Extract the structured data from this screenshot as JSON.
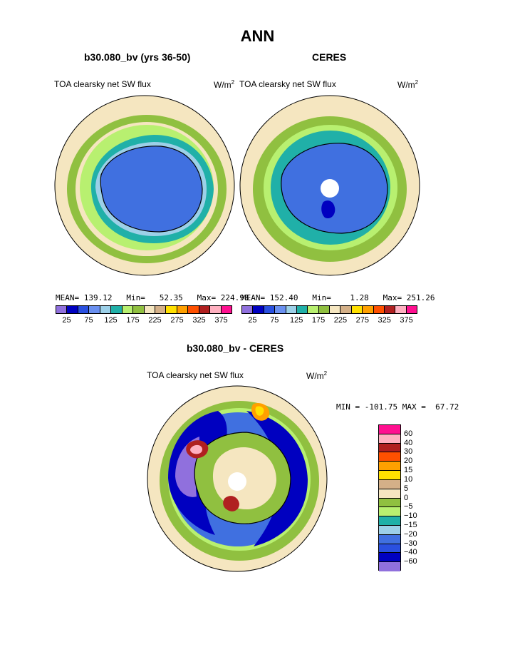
{
  "title": "ANN",
  "panels": {
    "left": {
      "title": "b30.080_bv (yrs 36-50)",
      "variable": "TOA clearsky net SW flux",
      "units_base": "W/m",
      "units_exp": "2",
      "stats": "MEAN= 139.12   Min=   52.35   Max= 224.98"
    },
    "right": {
      "title": "CERES",
      "variable": "TOA clearsky net SW flux",
      "units_base": "W/m",
      "units_exp": "2",
      "stats": "MEAN= 152.40   Min=    1.28   Max= 251.26"
    },
    "diff": {
      "title": "b30.080_bv - CERES",
      "variable": "TOA clearsky net SW flux",
      "units_base": "W/m",
      "units_exp": "2",
      "stats": "MIN = -101.75 MAX =  67.72"
    }
  },
  "colorbar_top": {
    "colors": [
      "#9070dd",
      "#0000c0",
      "#2a50e0",
      "#6a90f0",
      "#9cd0e8",
      "#20b0a8",
      "#b8f070",
      "#90c040",
      "#f5e6c0",
      "#d4b088",
      "#ffe000",
      "#ffa000",
      "#ff5000",
      "#b02020",
      "#ffb0c0",
      "#ff1090"
    ],
    "labels": [
      "25",
      "75",
      "125",
      "175",
      "225",
      "275",
      "325",
      "375"
    ]
  },
  "colorbar_diff": {
    "colors": [
      "#ff1090",
      "#ffb0c0",
      "#b02020",
      "#ff5000",
      "#ffa000",
      "#ffe000",
      "#d4b088",
      "#f5e6c0",
      "#90c040",
      "#b8f070",
      "#20b0a8",
      "#9cd0e8",
      "#4070e0",
      "#2a50e0",
      "#0000c0",
      "#9070dd"
    ],
    "labels": [
      "60",
      "40",
      "30",
      "20",
      "15",
      "10",
      "5",
      "0",
      "−5",
      "−10",
      "−15",
      "−20",
      "−30",
      "−40",
      "−60"
    ]
  },
  "map_colors": {
    "outer": "#f5e6c0",
    "ocean_green": "#90c040",
    "light_green": "#b8f070",
    "teal": "#20b0a8",
    "light_blue": "#9cd0e8",
    "blue": "#4070e0",
    "dark_blue": "#0000c0",
    "purple": "#9070dd",
    "tan": "#d4b088",
    "pink": "#ffb0c0",
    "red": "#b02020",
    "yellow": "#ffe000",
    "orange": "#ffa000"
  }
}
